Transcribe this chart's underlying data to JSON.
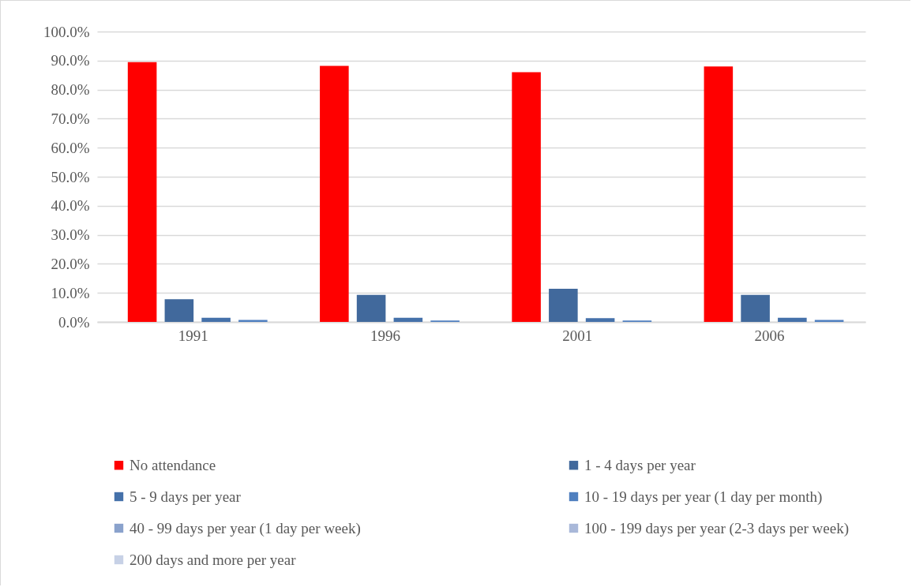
{
  "chart_data": {
    "type": "bar",
    "categories": [
      "1991",
      "1996",
      "2001",
      "2006"
    ],
    "series": [
      {
        "name": "No attendance",
        "color": "#ff0000",
        "values": [
          89.5,
          88.2,
          86.0,
          88.0
        ]
      },
      {
        "name": "1 - 4 days per year",
        "color": "#41699c",
        "values": [
          7.8,
          9.3,
          11.4,
          9.3
        ]
      },
      {
        "name": "5 - 9 days per year",
        "color": "#4571aa",
        "values": [
          1.4,
          1.4,
          1.3,
          1.4
        ]
      },
      {
        "name": "10 - 19 days per year (1 day per month)",
        "color": "#4f7fbf",
        "values": [
          0.7,
          0.5,
          0.5,
          0.7
        ]
      },
      {
        "name": "40 - 99 days per year (1 day per week)",
        "color": "#8aa2cc",
        "values": [
          null,
          null,
          null,
          null
        ]
      },
      {
        "name": "100 - 199 days per year (2-3 days per week)",
        "color": "#a9b8d9",
        "values": [
          null,
          null,
          null,
          null
        ]
      },
      {
        "name": "200 days and more per year",
        "color": "#c7d1e6",
        "values": [
          null,
          null,
          null,
          null
        ]
      }
    ],
    "ylim": [
      0,
      100
    ],
    "yticks": [
      {
        "value": 0,
        "label": "0.0%"
      },
      {
        "value": 10,
        "label": "10.0%"
      },
      {
        "value": 20,
        "label": "20.0%"
      },
      {
        "value": 30,
        "label": "30.0%"
      },
      {
        "value": 40,
        "label": "40.0%"
      },
      {
        "value": 50,
        "label": "50.0%"
      },
      {
        "value": 60,
        "label": "60.0%"
      },
      {
        "value": 70,
        "label": "70.0%"
      },
      {
        "value": 80,
        "label": "80.0%"
      },
      {
        "value": 90,
        "label": "90.0%"
      },
      {
        "value": 100,
        "label": "100.0%"
      }
    ],
    "grid": "y",
    "legend": "bottom"
  }
}
